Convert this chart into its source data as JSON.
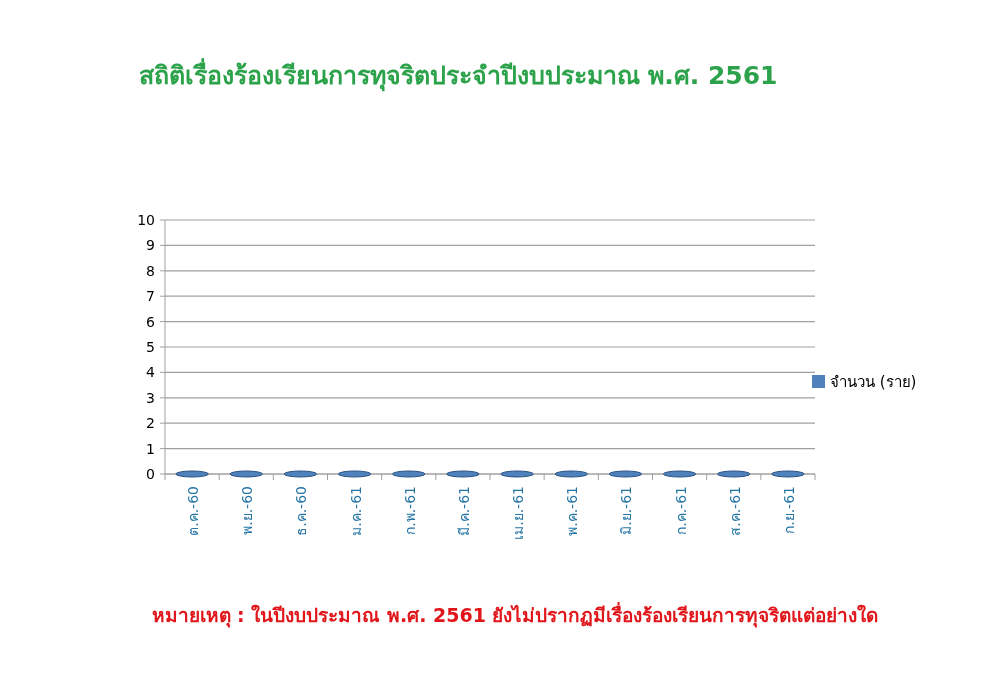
{
  "chart_data": {
    "type": "bar",
    "title": "สถิติเรื่องร้องเรียนการทุจริตประจำปีงบประมาณ  พ.ศ. 2561",
    "categories": [
      "ต.ค.-60",
      "พ.ย.-60",
      "ธ.ค.-60",
      "ม.ค.-61",
      "ก.พ.-61",
      "มี.ค.-61",
      "เม.ย.-61",
      "พ.ค.-61",
      "มิ.ย.-61",
      "ก.ค.-61",
      "ส.ค.-61",
      "ก.ย.-61"
    ],
    "series": [
      {
        "name": "จำนวน (ราย)",
        "color": "#4f81bd",
        "values": [
          0,
          0,
          0,
          0,
          0,
          0,
          0,
          0,
          0,
          0,
          0,
          0
        ]
      }
    ],
    "ylim": [
      0,
      10
    ],
    "yticks": [
      0,
      1,
      2,
      3,
      4,
      5,
      6,
      7,
      8,
      9,
      10
    ],
    "grid": "y",
    "legend": "right",
    "annotations": [
      "หมายเหตุ : ในปีงบประมาณ พ.ศ. 2561  ยังไม่ปรากฏมีเรื่องร้องเรียนการทุจริตแต่อย่างใด"
    ]
  }
}
